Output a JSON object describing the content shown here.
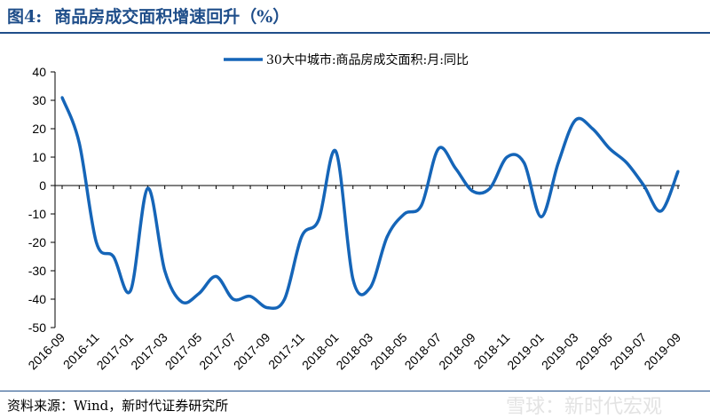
{
  "figure": {
    "number": "图4:",
    "title": "商品房成交面积增速回升（%）"
  },
  "source": "资料来源：Wind，新时代证券研究所",
  "watermark": "雪球：新时代宏观",
  "colors": {
    "line": "#1565b8",
    "title": "#1f4e8a"
  },
  "chart_data": {
    "type": "line",
    "title": "",
    "xlabel": "",
    "ylabel": "",
    "ylim": [
      -50,
      40
    ],
    "yticks": [
      40,
      30,
      20,
      10,
      0,
      -10,
      -20,
      -30,
      -40,
      -50
    ],
    "legend": "top-center",
    "grid": false,
    "x_tick_labels": [
      "2016-09",
      "2016-11",
      "2017-01",
      "2017-03",
      "2017-05",
      "2017-07",
      "2017-09",
      "2017-11",
      "2018-01",
      "2018-03",
      "2018-05",
      "2018-07",
      "2018-09",
      "2018-11",
      "2019-01",
      "2019-03",
      "2019-05",
      "2019-07",
      "2019-09"
    ],
    "x": [
      "2016-09",
      "2016-10",
      "2016-11",
      "2016-12",
      "2017-01",
      "2017-02",
      "2017-03",
      "2017-04",
      "2017-05",
      "2017-06",
      "2017-07",
      "2017-08",
      "2017-09",
      "2017-10",
      "2017-11",
      "2017-12",
      "2018-01",
      "2018-02",
      "2018-03",
      "2018-04",
      "2018-05",
      "2018-06",
      "2018-07",
      "2018-08",
      "2018-09",
      "2018-10",
      "2018-11",
      "2018-12",
      "2019-01",
      "2019-02",
      "2019-03",
      "2019-04",
      "2019-05",
      "2019-06",
      "2019-07",
      "2019-08",
      "2019-09"
    ],
    "series": [
      {
        "name": "30大中城市:商品房成交面积:月:同比",
        "values": [
          31,
          15,
          -20,
          -25,
          -37,
          -1,
          -30,
          -41,
          -38,
          -32,
          -40,
          -39,
          -43,
          -40,
          -18,
          -12,
          12,
          -33,
          -36,
          -18,
          -10,
          -7,
          13,
          6,
          -2,
          -1,
          10,
          8,
          -11,
          8,
          23,
          20,
          13,
          8,
          0,
          -9,
          5
        ]
      }
    ]
  }
}
